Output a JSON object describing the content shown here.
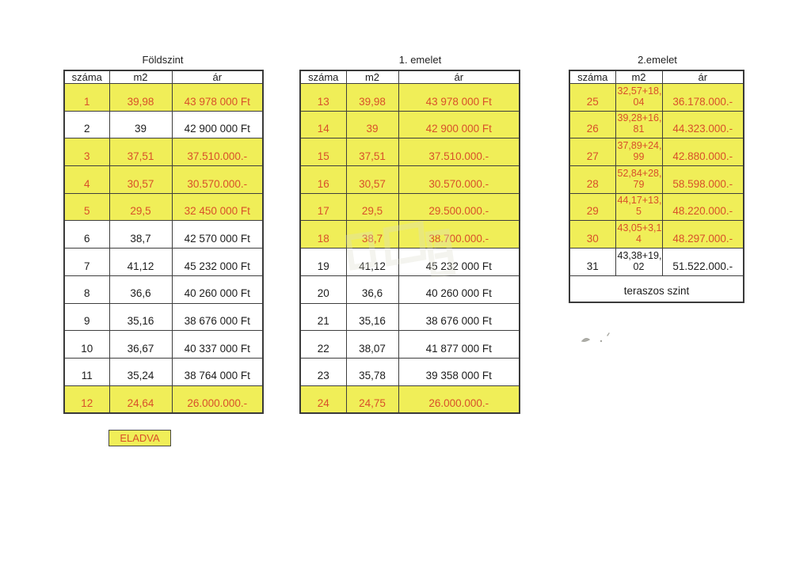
{
  "colors": {
    "highlight_yellow": "#f0ee58",
    "sold_red": "#d8502a",
    "ink_black": "#1c1c1c",
    "border_gray": "#3e3e3e"
  },
  "legend": {
    "label": "ELADVA"
  },
  "tables": [
    {
      "title": "Földszint",
      "columns": [
        "száma",
        "m2",
        "ár"
      ],
      "rows": [
        {
          "no": "1",
          "m2": "39,98",
          "price": "43 978 000 Ft",
          "sold": true
        },
        {
          "no": "2",
          "m2": "39",
          "price": "42 900 000 Ft",
          "sold": false
        },
        {
          "no": "3",
          "m2": "37,51",
          "price": "37.510.000.-",
          "sold": true
        },
        {
          "no": "4",
          "m2": "30,57",
          "price": "30.570.000.-",
          "sold": true
        },
        {
          "no": "5",
          "m2": "29,5",
          "price": "32 450 000 Ft",
          "sold": true
        },
        {
          "no": "6",
          "m2": "38,7",
          "price": "42 570 000 Ft",
          "sold": false
        },
        {
          "no": "7",
          "m2": "41,12",
          "price": "45 232 000 Ft",
          "sold": false
        },
        {
          "no": "8",
          "m2": "36,6",
          "price": "40 260 000 Ft",
          "sold": false
        },
        {
          "no": "9",
          "m2": "35,16",
          "price": "38 676 000 Ft",
          "sold": false
        },
        {
          "no": "10",
          "m2": "36,67",
          "price": "40 337 000 Ft",
          "sold": false
        },
        {
          "no": "11",
          "m2": "35,24",
          "price": "38 764 000 Ft",
          "sold": false
        },
        {
          "no": "12",
          "m2": "24,64",
          "price": "26.000.000.-",
          "sold": true
        }
      ]
    },
    {
      "title": "1. emelet",
      "columns": [
        "száma",
        "m2",
        "ár"
      ],
      "rows": [
        {
          "no": "13",
          "m2": "39,98",
          "price": "43 978 000 Ft",
          "sold": true
        },
        {
          "no": "14",
          "m2": "39",
          "price": "42 900 000 Ft",
          "sold": true
        },
        {
          "no": "15",
          "m2": "37,51",
          "price": "37.510.000.-",
          "sold": true
        },
        {
          "no": "16",
          "m2": "30,57",
          "price": "30.570.000.-",
          "sold": true
        },
        {
          "no": "17",
          "m2": "29,5",
          "price": "29.500.000.-",
          "sold": true
        },
        {
          "no": "18",
          "m2": "38,7",
          "price": "38.700.000.-",
          "sold": true
        },
        {
          "no": "19",
          "m2": "41,12",
          "price": "45 232 000 Ft",
          "sold": false
        },
        {
          "no": "20",
          "m2": "36,6",
          "price": "40 260 000 Ft",
          "sold": false
        },
        {
          "no": "21",
          "m2": "35,16",
          "price": "38 676 000 Ft",
          "sold": false
        },
        {
          "no": "22",
          "m2": "38,07",
          "price": "41 877 000 Ft",
          "sold": false
        },
        {
          "no": "23",
          "m2": "35,78",
          "price": "39 358 000 Ft",
          "sold": false
        },
        {
          "no": "24",
          "m2": "24,75",
          "price": "26.000.000.-",
          "sold": true
        }
      ]
    },
    {
      "title": "2.emelet",
      "columns": [
        "száma",
        "m2",
        "ár"
      ],
      "rows": [
        {
          "no": "25",
          "m2": "32,57+18,04",
          "price": "36.178.000.-",
          "sold": true
        },
        {
          "no": "26",
          "m2": "39,28+16,81",
          "price": "44.323.000.-",
          "sold": true
        },
        {
          "no": "27",
          "m2": "37,89+24,99",
          "price": "42.880.000.-",
          "sold": true
        },
        {
          "no": "28",
          "m2": "52,84+28,79",
          "price": "58.598.000.-",
          "sold": true
        },
        {
          "no": "29",
          "m2": "44,17+13,5",
          "price": "48.220.000.-",
          "sold": true
        },
        {
          "no": "30",
          "m2": "43,05+3,14",
          "price": "48.297.000.-",
          "sold": true
        },
        {
          "no": "31",
          "m2": "43,38+19,02",
          "price": "51.522.000.-",
          "sold": false
        }
      ],
      "footer": "teraszos szint"
    }
  ]
}
